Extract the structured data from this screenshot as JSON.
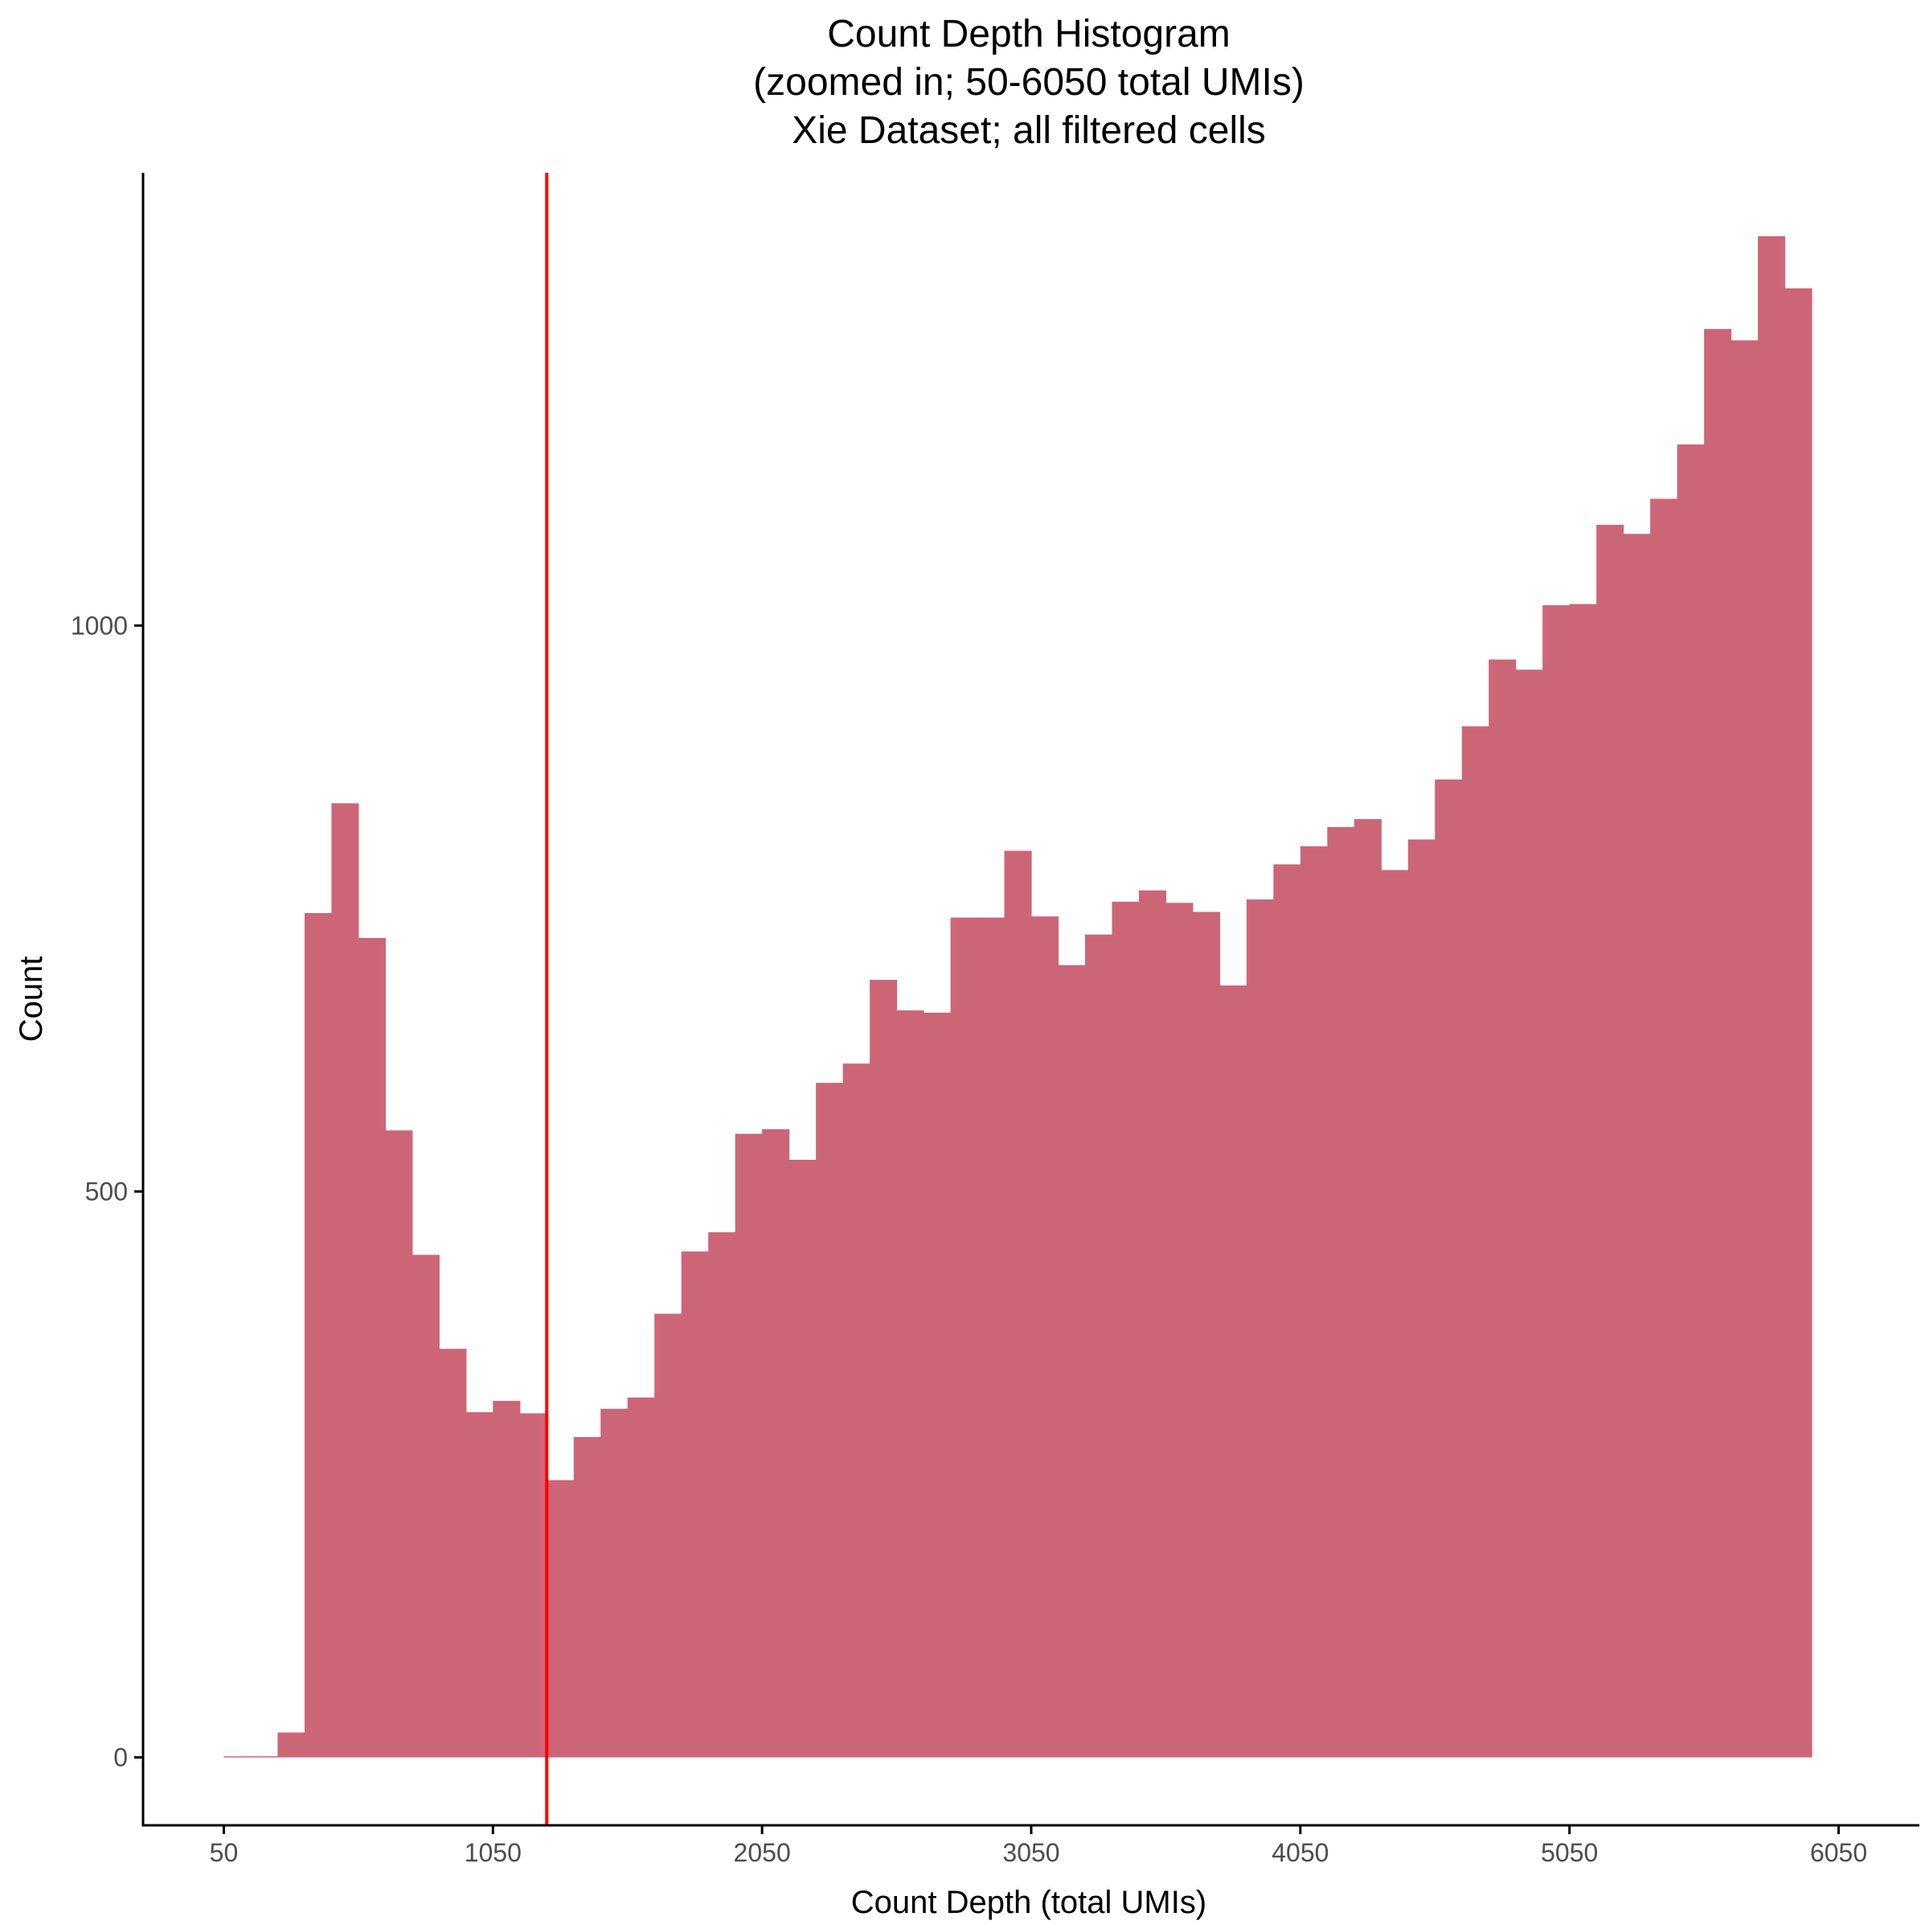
{
  "chart_data": {
    "type": "bar",
    "title_lines": [
      "Count Depth Histogram",
      "(zoomed in; 50-6050 total UMIs)",
      "Xie Dataset; all filtered cells"
    ],
    "xlabel": "Count Depth (total UMIs)",
    "ylabel": "Count",
    "xlim": [
      -250,
      6350
    ],
    "ylim": [
      -60,
      1400
    ],
    "x_ticks": [
      50,
      1050,
      2050,
      3050,
      4050,
      5050,
      6050
    ],
    "y_ticks": [
      0,
      500,
      1000
    ],
    "bin_start": 50,
    "bin_width": 100,
    "values": [
      1,
      1,
      22,
      746,
      843,
      724,
      554,
      444,
      361,
      305,
      315,
      304,
      245,
      283,
      308,
      318,
      392,
      447,
      464,
      551,
      555,
      528,
      596,
      613,
      687,
      660,
      658,
      742,
      742,
      801,
      743,
      700,
      727,
      756,
      766,
      755,
      747,
      682,
      758,
      789,
      805,
      822,
      829,
      784,
      811,
      864,
      911,
      970,
      961,
      1018,
      1019,
      1089,
      1081,
      1112,
      1160,
      1262,
      1252,
      1344,
      1298
    ],
    "vline": {
      "x": 1250,
      "color": "#ff0000"
    },
    "colors": {
      "bar": "#cc6677",
      "vline": "#ff0000",
      "axis": "#000000",
      "tick_text": "#4d4d4d"
    },
    "grid": false,
    "legend": "none"
  }
}
